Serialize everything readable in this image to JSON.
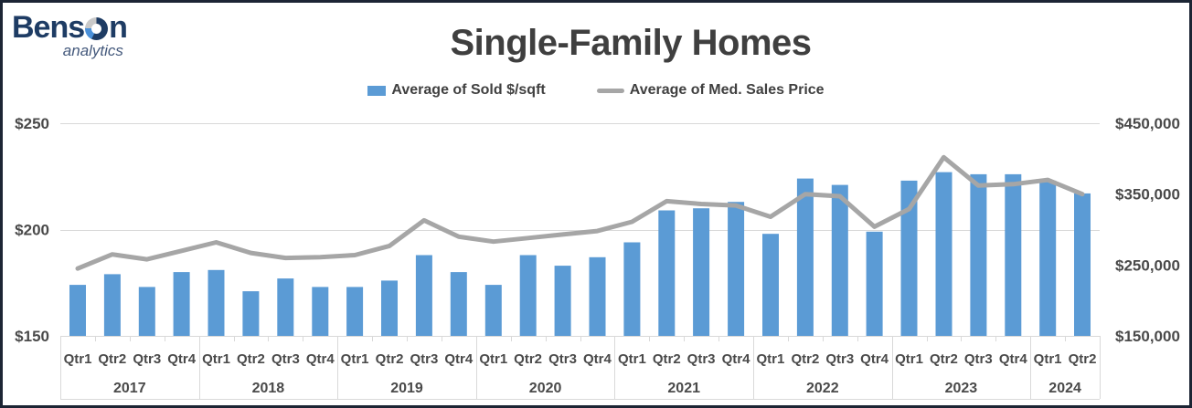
{
  "logo": {
    "name_prefix": "Bens",
    "name_suffix": "n",
    "tagline": "analytics"
  },
  "title": "Single-Family Homes",
  "legend": {
    "items": [
      {
        "label": "Average of Sold $/sqft",
        "swatch": "bar",
        "color": "#5B9BD5"
      },
      {
        "label": "Average of Med. Sales Price",
        "swatch": "line",
        "color": "#A6A6A6"
      }
    ]
  },
  "chart_data": {
    "type": "combo-bar-line",
    "title": "Single-Family Homes",
    "grid": "horizontal gridlines at left-axis ticks",
    "legend_position": "top-center",
    "x_quarters": [
      "Qtr1",
      "Qtr2",
      "Qtr3",
      "Qtr4",
      "Qtr1",
      "Qtr2",
      "Qtr3",
      "Qtr4",
      "Qtr1",
      "Qtr2",
      "Qtr3",
      "Qtr4",
      "Qtr1",
      "Qtr2",
      "Qtr3",
      "Qtr4",
      "Qtr1",
      "Qtr2",
      "Qtr3",
      "Qtr4",
      "Qtr1",
      "Qtr2",
      "Qtr3",
      "Qtr4",
      "Qtr1",
      "Qtr2",
      "Qtr3",
      "Qtr4",
      "Qtr1",
      "Qtr2"
    ],
    "year_groups": [
      {
        "label": "2017",
        "count": 4
      },
      {
        "label": "2018",
        "count": 4
      },
      {
        "label": "2019",
        "count": 4
      },
      {
        "label": "2020",
        "count": 4
      },
      {
        "label": "2021",
        "count": 4
      },
      {
        "label": "2022",
        "count": 4
      },
      {
        "label": "2023",
        "count": 4
      },
      {
        "label": "2024",
        "count": 2
      }
    ],
    "series": [
      {
        "name": "Average of Sold $/sqft",
        "type": "bar",
        "axis": "left",
        "color": "#5B9BD5",
        "values": [
          174,
          179,
          173,
          180,
          181,
          171,
          177,
          173,
          173,
          176,
          188,
          180,
          174,
          188,
          183,
          187,
          194,
          209,
          210,
          213,
          198,
          224,
          221,
          199,
          223,
          227,
          226,
          226,
          223,
          217
        ]
      },
      {
        "name": "Average of Med. Sales Price",
        "type": "line",
        "axis": "right",
        "color": "#A6A6A6",
        "values": [
          245000,
          265000,
          258000,
          270000,
          282000,
          267000,
          260000,
          261000,
          264000,
          277000,
          313000,
          290000,
          283000,
          288000,
          293000,
          298000,
          311000,
          340000,
          336000,
          334000,
          318000,
          350000,
          347000,
          304000,
          329000,
          402000,
          362000,
          364000,
          370000,
          350000
        ]
      }
    ],
    "left_axis": {
      "min": 150,
      "max": 250,
      "ticks": [
        {
          "value": 150,
          "label": "$150"
        },
        {
          "value": 200,
          "label": "$200"
        },
        {
          "value": 250,
          "label": "$250"
        }
      ]
    },
    "right_axis": {
      "min": 150000,
      "max": 450000,
      "ticks": [
        {
          "value": 150000,
          "label": "$150,000"
        },
        {
          "value": 250000,
          "label": "$250,000"
        },
        {
          "value": 350000,
          "label": "$350,000"
        },
        {
          "value": 450000,
          "label": "$450,000"
        }
      ]
    }
  },
  "colors": {
    "bar": "#5B9BD5",
    "line": "#A6A6A6",
    "gridline": "#D9D9D9",
    "axis_text": "#4a4a4a",
    "title_text": "#3f3f3f",
    "frame": "#1c2534",
    "logo_navy": "#1e3c64",
    "logo_blue": "#4a90d9",
    "logo_gray": "#c9c9c9"
  }
}
